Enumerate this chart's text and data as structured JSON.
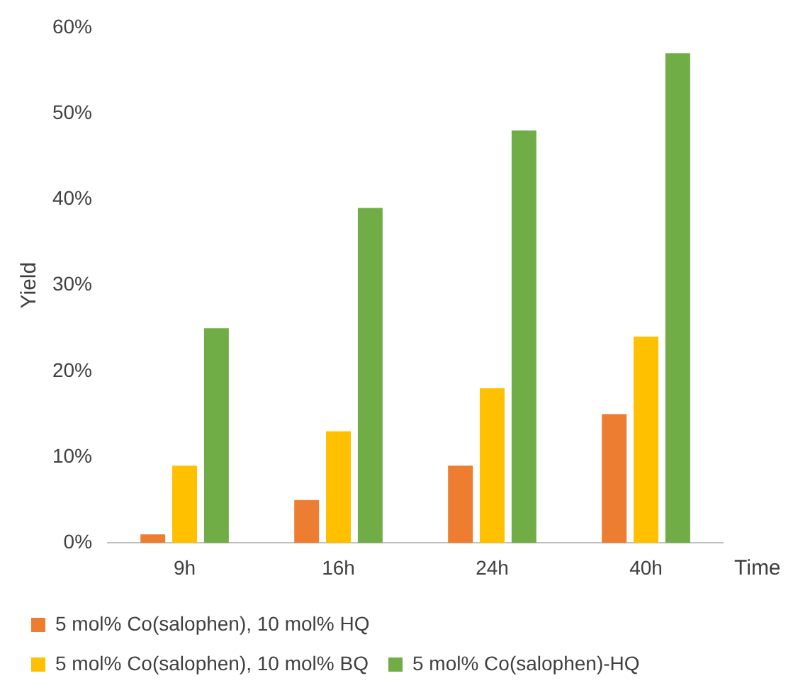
{
  "chart_data": {
    "type": "bar",
    "xlabel": "Time",
    "ylabel": "Yield",
    "categories": [
      "9h",
      "16h",
      "24h",
      "40h"
    ],
    "series": [
      {
        "name": "5 mol% Co(salophen), 10 mol% HQ",
        "color": "#ed7d31",
        "values": [
          1,
          5,
          9,
          15
        ]
      },
      {
        "name": "5 mol% Co(salophen), 10 mol% BQ",
        "color": "#ffc000",
        "values": [
          9,
          13,
          18,
          24
        ]
      },
      {
        "name": "5 mol% Co(salophen)-HQ",
        "color": "#70ad47",
        "values": [
          25,
          39,
          48,
          57
        ]
      }
    ],
    "ylim": [
      0,
      60
    ],
    "yticks": [
      {
        "value": 0,
        "label": "0%"
      },
      {
        "value": 10,
        "label": "10%"
      },
      {
        "value": 20,
        "label": "20%"
      },
      {
        "value": 30,
        "label": "30%"
      },
      {
        "value": 40,
        "label": "40%"
      },
      {
        "value": 50,
        "label": "50%"
      },
      {
        "value": 60,
        "label": "60%"
      }
    ],
    "grid": false,
    "legend": "bottom"
  }
}
